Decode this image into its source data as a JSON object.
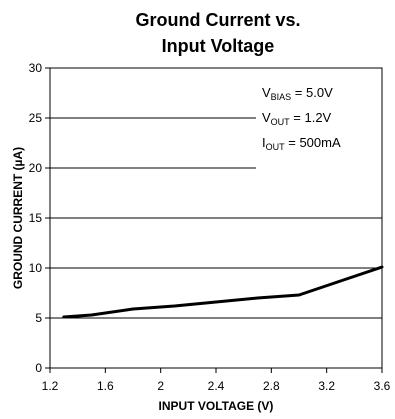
{
  "chart_data": {
    "type": "line",
    "title_lines": [
      "Ground Current vs.",
      "Input Voltage"
    ],
    "xlabel": "INPUT VOLTAGE (V)",
    "ylabel": "GROUND CURRENT (µA)",
    "xlim": [
      1.2,
      3.6
    ],
    "ylim": [
      0,
      30
    ],
    "x_ticks": [
      1.2,
      1.6,
      2,
      2.4,
      2.8,
      3.2,
      3.6
    ],
    "x_tick_labels": [
      "1.2",
      "1.6",
      "2",
      "2.4",
      "2.8",
      "3.2",
      "3.6"
    ],
    "y_ticks": [
      0,
      5,
      10,
      15,
      20,
      25,
      30
    ],
    "y_tick_labels": [
      "0",
      "5",
      "10",
      "15",
      "20",
      "25",
      "30"
    ],
    "grid": "horizontal",
    "legend": "none",
    "series": [
      {
        "x": [
          1.3,
          1.5,
          1.8,
          2.1,
          2.4,
          2.7,
          3.0,
          3.3,
          3.6
        ],
        "y": [
          5.1,
          5.3,
          5.9,
          6.2,
          6.6,
          7.0,
          7.3,
          8.7,
          10.1
        ],
        "color": "#000000"
      }
    ],
    "annotations": [
      {
        "main": "V",
        "sub": "BIAS",
        "rest": " = 5.0V"
      },
      {
        "main": "V",
        "sub": "OUT",
        "rest": " = 1.2V"
      },
      {
        "main": "I",
        "sub": "OUT",
        "rest": " = 500mA"
      }
    ]
  }
}
